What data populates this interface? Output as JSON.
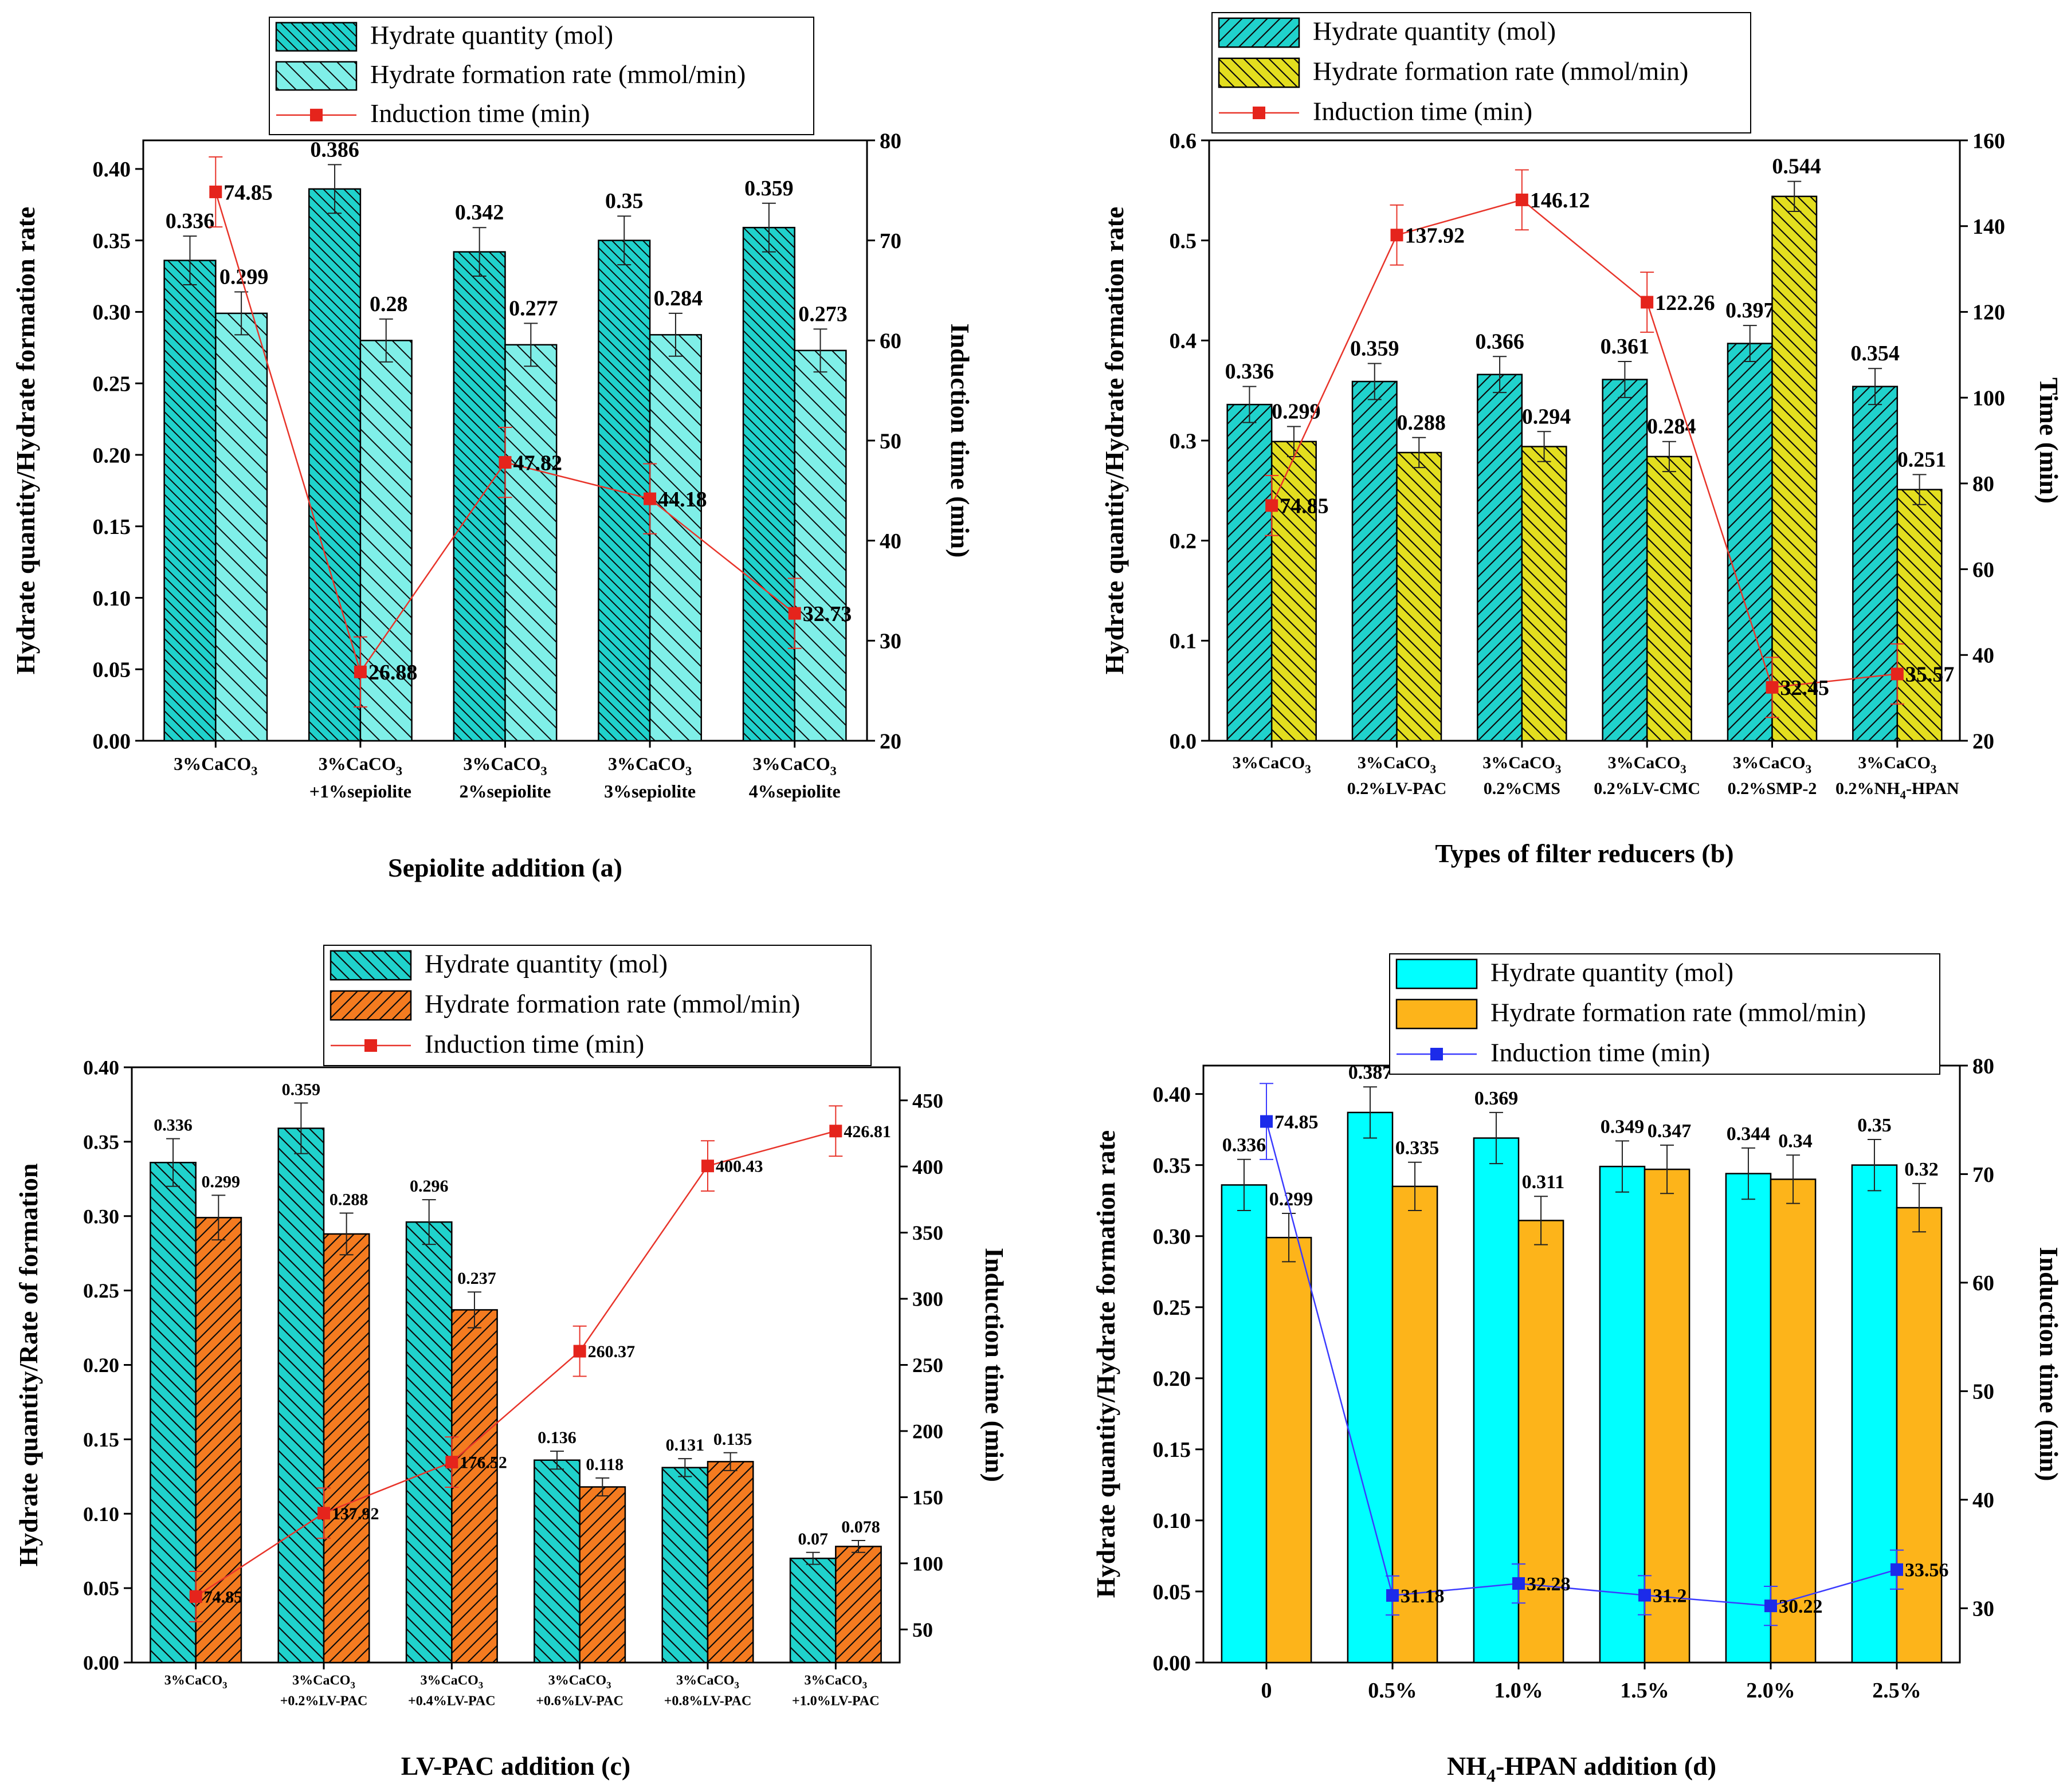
{
  "chart_data": [
    {
      "panel": "a",
      "type": "bar",
      "title": "",
      "xlabel": "Sepiolite addition  (a)",
      "ylabel": "Hydrate quantity/Hydrate formation rate",
      "y2label": "Induction time (min)",
      "ylim": [
        0,
        0.42
      ],
      "y2lim": [
        20,
        80
      ],
      "yticks": [
        "0.00",
        "0.05",
        "0.10",
        "0.15",
        "0.20",
        "0.25",
        "0.30",
        "0.35",
        "0.40"
      ],
      "y2ticks": [
        "20",
        "30",
        "40",
        "50",
        "60",
        "70",
        "80"
      ],
      "categories": [
        [
          "3%CaCO3"
        ],
        [
          "3%CaCO3",
          "+1%sepiolite"
        ],
        [
          "3%CaCO3",
          "2%sepiolite"
        ],
        [
          "3%CaCO3",
          "3%sepiolite"
        ],
        [
          "3%CaCO3",
          "4%sepiolite"
        ]
      ],
      "legend_position": "top",
      "series": [
        {
          "name": "Hydrate quantity (mol)",
          "values": [
            0.336,
            0.386,
            0.342,
            0.35,
            0.359
          ],
          "labels": [
            "0.336",
            "0.386",
            "0.342",
            "0.35",
            "0.359"
          ],
          "error": 0.017,
          "color": "#20D2CC",
          "hatch": "ltr-dense"
        },
        {
          "name": "Hydrate formation rate (mmol/min)",
          "values": [
            0.299,
            0.28,
            0.277,
            0.284,
            0.273
          ],
          "labels": [
            "0.299",
            "0.28",
            "0.277",
            "0.284",
            "0.273"
          ],
          "error": 0.015,
          "color": "#7FEFE8",
          "hatch": "ltr-sparse"
        }
      ],
      "line": {
        "name": "Induction time (min)",
        "values": [
          74.85,
          26.88,
          47.82,
          44.18,
          32.73
        ],
        "labels": [
          "74.85",
          "26.88",
          "47.82",
          "44.18",
          "32.73"
        ],
        "error": 3.5,
        "color": "#E8342A",
        "marker": "#E5241C"
      }
    },
    {
      "panel": "b",
      "type": "bar",
      "title": "",
      "xlabel": "Types of filter reducers  (b)",
      "ylabel": "Hydrate quantity/Hydrate formation rate",
      "y2label": "Time (min)",
      "ylim": [
        0,
        0.6
      ],
      "y2lim": [
        20,
        160
      ],
      "yticks": [
        "0.0",
        "0.1",
        "0.2",
        "0.3",
        "0.4",
        "0.5",
        "0.6"
      ],
      "y2ticks": [
        "20",
        "40",
        "60",
        "80",
        "100",
        "120",
        "140",
        "160"
      ],
      "categories": [
        [
          "3%CaCO3"
        ],
        [
          "3%CaCO3",
          "0.2%LV-PAC"
        ],
        [
          "3%CaCO3",
          "0.2%CMS"
        ],
        [
          "3%CaCO3",
          "0.2%LV-CMC"
        ],
        [
          "3%CaCO3",
          "0.2%SMP-2"
        ],
        [
          "3%CaCO3",
          "0.2%NH4-HPAN"
        ]
      ],
      "legend_position": "top",
      "series": [
        {
          "name": "Hydrate quantity  (mol)",
          "values": [
            0.336,
            0.359,
            0.366,
            0.361,
            0.397,
            0.354
          ],
          "labels": [
            "0.336",
            "0.359",
            "0.366",
            "0.361",
            "0.397",
            "0.354"
          ],
          "error": 0.018,
          "color": "#20D2CC",
          "hatch": "rtl"
        },
        {
          "name": "Hydrate formation rate  (mmol/min)",
          "values": [
            0.299,
            0.288,
            0.294,
            0.284,
            0.544,
            0.251
          ],
          "labels": [
            "0.299",
            "0.288",
            "0.294",
            "0.284",
            "0.544",
            "0.251"
          ],
          "error": 0.015,
          "color": "#E3DE1F",
          "hatch": "ltr"
        }
      ],
      "line": {
        "name": "Induction time (min)",
        "values": [
          74.85,
          137.92,
          146.12,
          122.26,
          32.45,
          35.57
        ],
        "labels": [
          "74.85",
          "137.92",
          "146.12",
          "122.26",
          "32.45",
          "35.57"
        ],
        "error": 7,
        "color": "#E8342A",
        "marker": "#E5241C"
      }
    },
    {
      "panel": "c",
      "type": "bar",
      "title": "",
      "xlabel": "LV-PAC addition  (c)",
      "ylabel": "Hydrate quantity/Rate of formation",
      "y2label": "Induction time (min)",
      "ylim": [
        0,
        0.4
      ],
      "y2lim": [
        25,
        475
      ],
      "yticks": [
        "0.00",
        "0.05",
        "0.10",
        "0.15",
        "0.20",
        "0.25",
        "0.30",
        "0.35",
        "0.40"
      ],
      "y2ticks": [
        "50",
        "100",
        "150",
        "200",
        "250",
        "300",
        "350",
        "400",
        "450"
      ],
      "categories": [
        [
          "3%CaCO3"
        ],
        [
          "3%CaCO3",
          "+0.2%LV-PAC"
        ],
        [
          "3%CaCO3",
          "+0.4%LV-PAC"
        ],
        [
          "3%CaCO3",
          "+0.6%LV-PAC"
        ],
        [
          "3%CaCO3",
          "+0.8%LV-PAC"
        ],
        [
          "3%CaCO3",
          "+1.0%LV-PAC"
        ]
      ],
      "legend_position": "top",
      "series": [
        {
          "name": "Hydrate quantity (mol)",
          "values": [
            0.336,
            0.359,
            0.296,
            0.136,
            0.131,
            0.07
          ],
          "labels": [
            "0.336",
            "0.359",
            "0.296",
            "0.136",
            "0.131",
            "0.07"
          ],
          "error": 0.016,
          "error_list": [
            0.016,
            0.017,
            0.015,
            0.006,
            0.006,
            0.004
          ],
          "color": "#20D2CC",
          "hatch": "ltr"
        },
        {
          "name": "Hydrate formation rate (mmol/min)",
          "values": [
            0.299,
            0.288,
            0.237,
            0.118,
            0.135,
            0.078
          ],
          "labels": [
            "0.299",
            "0.288",
            "0.237",
            "0.118",
            "0.135",
            "0.078"
          ],
          "error": 0.015,
          "error_list": [
            0.015,
            0.014,
            0.012,
            0.006,
            0.006,
            0.004
          ],
          "color": "#F47B20",
          "hatch": "rtl"
        }
      ],
      "line": {
        "name": "Induction time (min)",
        "values": [
          74.85,
          137.92,
          176.52,
          260.37,
          400.43,
          426.81
        ],
        "labels": [
          "74.85",
          "137.92",
          "176.52",
          "260.37",
          "400.43",
          "426.81"
        ],
        "error": 19,
        "color": "#E8342A",
        "marker": "#E5241C"
      }
    },
    {
      "panel": "d",
      "type": "bar",
      "title": "",
      "xlabel": "NH4-HPAN addition  (d)",
      "ylabel": "Hydrate quantity/Hydrate formation rate",
      "y2label": "Induction time (min)",
      "ylim": [
        0,
        0.42
      ],
      "y2lim": [
        25,
        80
      ],
      "yticks": [
        "0.00",
        "0.05",
        "0.10",
        "0.15",
        "0.20",
        "0.25",
        "0.30",
        "0.35",
        "0.40"
      ],
      "y2ticks": [
        "30",
        "40",
        "50",
        "60",
        "70",
        "80"
      ],
      "categories": [
        [
          "0"
        ],
        [
          "0.5%"
        ],
        [
          "1.0%"
        ],
        [
          "1.5%"
        ],
        [
          "2.0%"
        ],
        [
          "2.5%"
        ]
      ],
      "legend_position": "top",
      "series": [
        {
          "name": "Hydrate quantity (mol)",
          "values": [
            0.336,
            0.387,
            0.369,
            0.349,
            0.344,
            0.35
          ],
          "labels": [
            "0.336",
            "0.387",
            "0.369",
            "0.349",
            "0.344",
            "0.35"
          ],
          "error": 0.018,
          "color": "#00FFFF",
          "hatch": "none"
        },
        {
          "name": "Hydrate formation rate (mmol/min)",
          "values": [
            0.299,
            0.335,
            0.311,
            0.347,
            0.34,
            0.32
          ],
          "labels": [
            "0.299",
            "0.335",
            "0.311",
            "0.347",
            "0.34",
            "0.32"
          ],
          "error": 0.017,
          "color": "#FDB41A",
          "hatch": "none"
        }
      ],
      "line": {
        "name": "Induction time (min)",
        "values": [
          74.85,
          31.18,
          32.28,
          31.2,
          30.22,
          33.56
        ],
        "labels": [
          "74.85",
          "31.18",
          "32.28",
          "31.2",
          "30.22",
          "33.56"
        ],
        "error": 1.8,
        "error_first": 3.5,
        "color": "#3B3BFF",
        "marker": "#1C2BEA"
      }
    }
  ]
}
